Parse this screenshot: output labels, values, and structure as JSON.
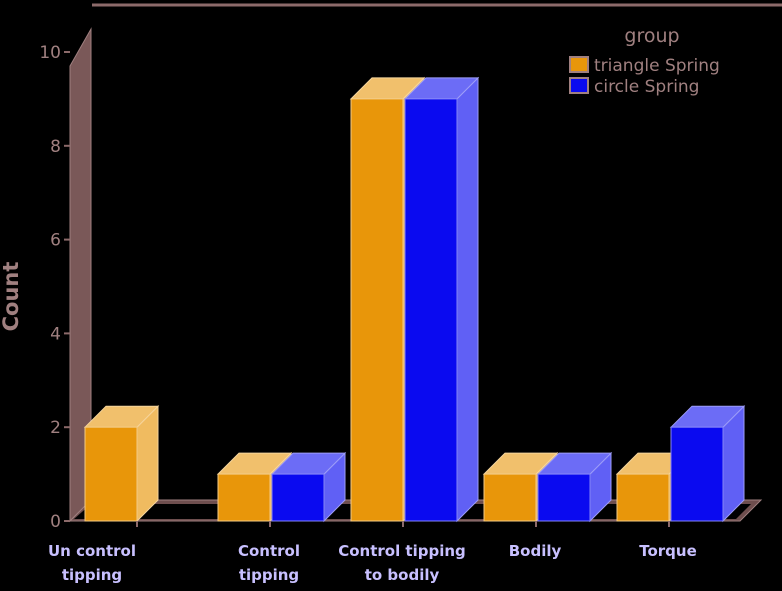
{
  "chart_data": {
    "type": "bar",
    "title": "",
    "xlabel": "",
    "ylabel": "Count",
    "ylim": [
      0,
      10
    ],
    "yticks": [
      0,
      2,
      4,
      6,
      8,
      10
    ],
    "categories": [
      [
        "Un control",
        "tipping"
      ],
      [
        "Control",
        "tipping"
      ],
      [
        "Control tipping",
        "to bodily"
      ],
      [
        "Bodily"
      ],
      [
        "Torque"
      ]
    ],
    "legend": {
      "title": "group",
      "placement": "top-right"
    },
    "series": [
      {
        "name": "triangle Spring",
        "color": "#e8960a",
        "values": [
          2,
          1,
          9,
          1,
          1
        ]
      },
      {
        "name": "circle Spring",
        "color": "#0a0af0",
        "values": [
          0,
          1,
          9,
          1,
          2
        ]
      }
    ],
    "grid": false,
    "style": "3d",
    "colors": {
      "axis": "#8c6a6a",
      "text": "#a08080",
      "category_label": "#c8c0ff",
      "background": "#000000"
    }
  }
}
